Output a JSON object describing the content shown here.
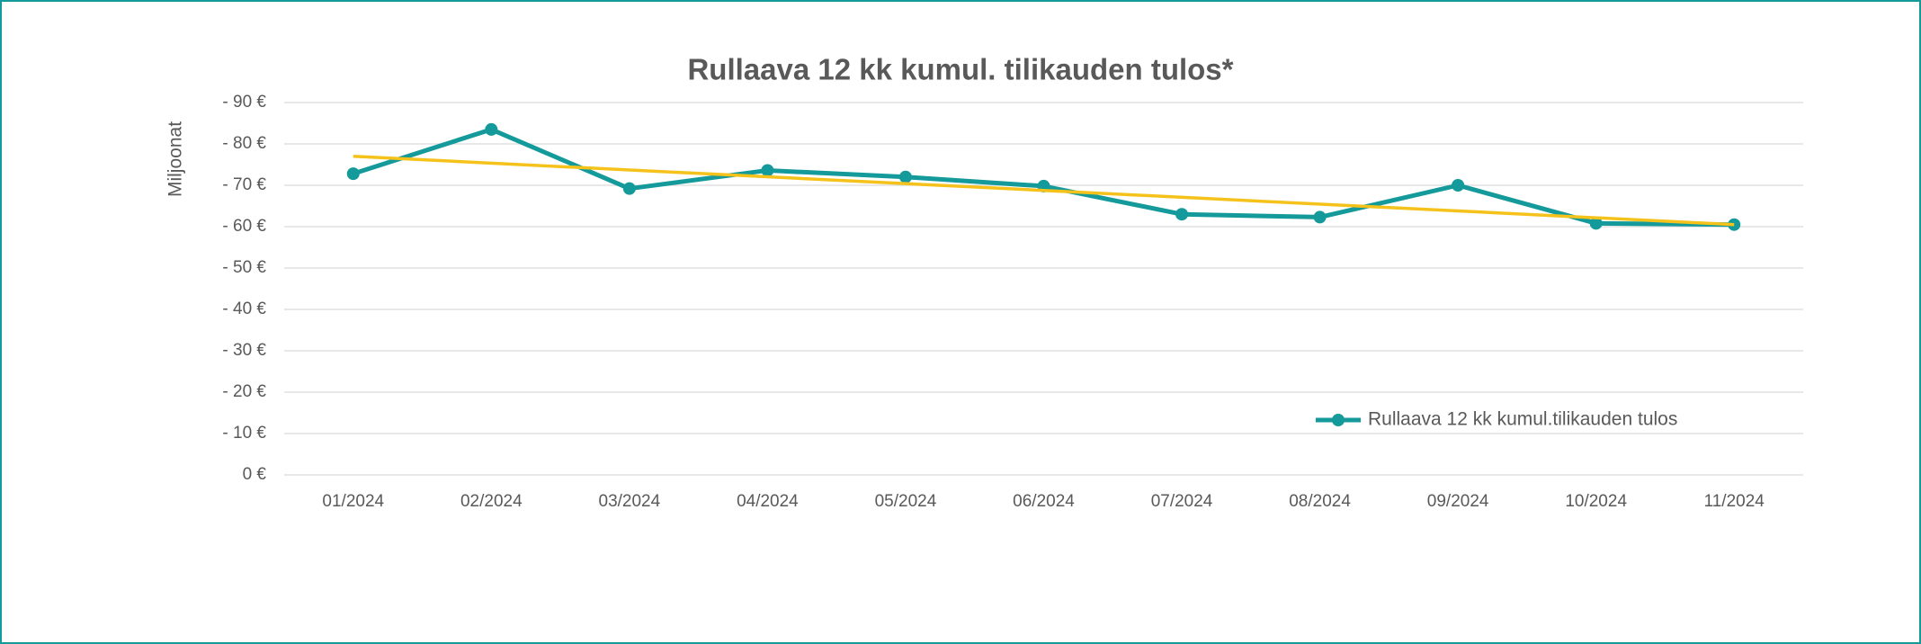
{
  "chart_data": {
    "type": "line",
    "title": "Rullaava 12 kk kumul. tilikauden tulos*",
    "y_label": "Miljoonat",
    "categories": [
      "01/2024",
      "02/2024",
      "03/2024",
      "04/2024",
      "05/2024",
      "06/2024",
      "07/2024",
      "08/2024",
      "09/2024",
      "10/2024",
      "11/2024"
    ],
    "series": [
      {
        "name": "Rullaava 12 kk kumul.tilikauden tulos",
        "color": "#149a9a",
        "values": [
          72.8,
          83.5,
          69.2,
          73.6,
          72.0,
          69.8,
          63.0,
          62.3,
          70.0,
          60.8,
          60.5
        ]
      }
    ],
    "trend": {
      "color": "#f5c21b",
      "values": [
        77.0,
        60.5
      ]
    },
    "ylim": [
      0,
      90
    ],
    "yticks": [
      {
        "value": 0,
        "label": "0 €"
      },
      {
        "value": 10,
        "label": "- 10 €"
      },
      {
        "value": 20,
        "label": "- 20 €"
      },
      {
        "value": 30,
        "label": "- 30 €"
      },
      {
        "value": 40,
        "label": "- 40 €"
      },
      {
        "value": 50,
        "label": "- 50 €"
      },
      {
        "value": 60,
        "label": "- 60 €"
      },
      {
        "value": 70,
        "label": "- 70 €"
      },
      {
        "value": 80,
        "label": "- 80 €"
      },
      {
        "value": 90,
        "label": "- 90 €"
      }
    ],
    "grid": true,
    "legend": "lower right"
  }
}
